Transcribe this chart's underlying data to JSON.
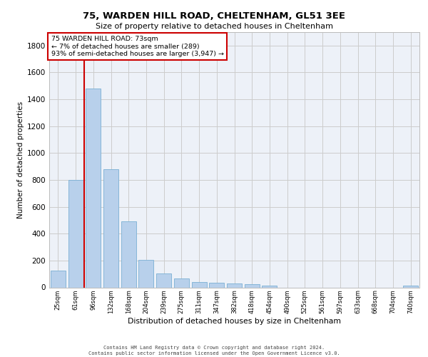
{
  "title1": "75, WARDEN HILL ROAD, CHELTENHAM, GL51 3EE",
  "title2": "Size of property relative to detached houses in Cheltenham",
  "xlabel": "Distribution of detached houses by size in Cheltenham",
  "ylabel": "Number of detached properties",
  "categories": [
    "25sqm",
    "61sqm",
    "96sqm",
    "132sqm",
    "168sqm",
    "204sqm",
    "239sqm",
    "275sqm",
    "311sqm",
    "347sqm",
    "382sqm",
    "418sqm",
    "454sqm",
    "490sqm",
    "525sqm",
    "561sqm",
    "597sqm",
    "633sqm",
    "668sqm",
    "704sqm",
    "740sqm"
  ],
  "values": [
    125,
    800,
    1480,
    880,
    490,
    205,
    105,
    65,
    40,
    35,
    28,
    25,
    15,
    0,
    0,
    0,
    0,
    0,
    0,
    0,
    15
  ],
  "bar_color": "#b8d0eb",
  "bar_edge_color": "#7aafd4",
  "vline_color": "#cc0000",
  "vline_x_idx": 1.5,
  "annotation_text": "75 WARDEN HILL ROAD: 73sqm\n← 7% of detached houses are smaller (289)\n93% of semi-detached houses are larger (3,947) →",
  "annotation_box_facecolor": "#ffffff",
  "annotation_box_edgecolor": "#cc0000",
  "ylim": [
    0,
    1900
  ],
  "yticks": [
    0,
    200,
    400,
    600,
    800,
    1000,
    1200,
    1400,
    1600,
    1800
  ],
  "grid_color": "#cccccc",
  "plot_bg_color": "#edf1f8",
  "footer1": "Contains HM Land Registry data © Crown copyright and database right 2024.",
  "footer2": "Contains public sector information licensed under the Open Government Licence v3.0."
}
